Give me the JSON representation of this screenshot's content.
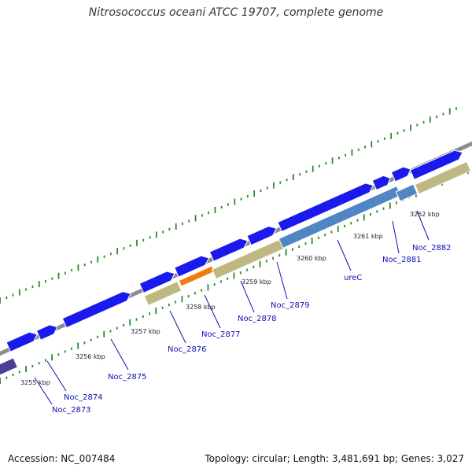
{
  "title": "Nitrosococcus oceani ATCC 19707, complete genome",
  "footer": {
    "accession": "Accession: NC_007484",
    "meta": "Topology: circular; Length: 3,481,691 bp; Genes: 3,027"
  },
  "colors": {
    "backbone": "#8c8c92",
    "gene_forward": "#1a1aee",
    "gene_tan": "#bfb882",
    "gene_orange": "#f07c0c",
    "gene_steel": "#4f86c3",
    "gene_purple": "#4a3f96",
    "gc_tick": "#2a8a2a",
    "label": "#1010b0"
  },
  "kbp_labels": [
    "3255 kbp",
    "3256 kbp",
    "3257 kbp",
    "3258 kbp",
    "3259 kbp",
    "3260 kbp",
    "3261 kbp",
    "3262 kbp"
  ],
  "gene_labels": [
    "Noc_2873",
    "Noc_2874",
    "Noc_2875",
    "Noc_2876",
    "Noc_2877",
    "Noc_2878",
    "Noc_2879",
    "ureC",
    "Noc_2881",
    "Noc_2882"
  ]
}
